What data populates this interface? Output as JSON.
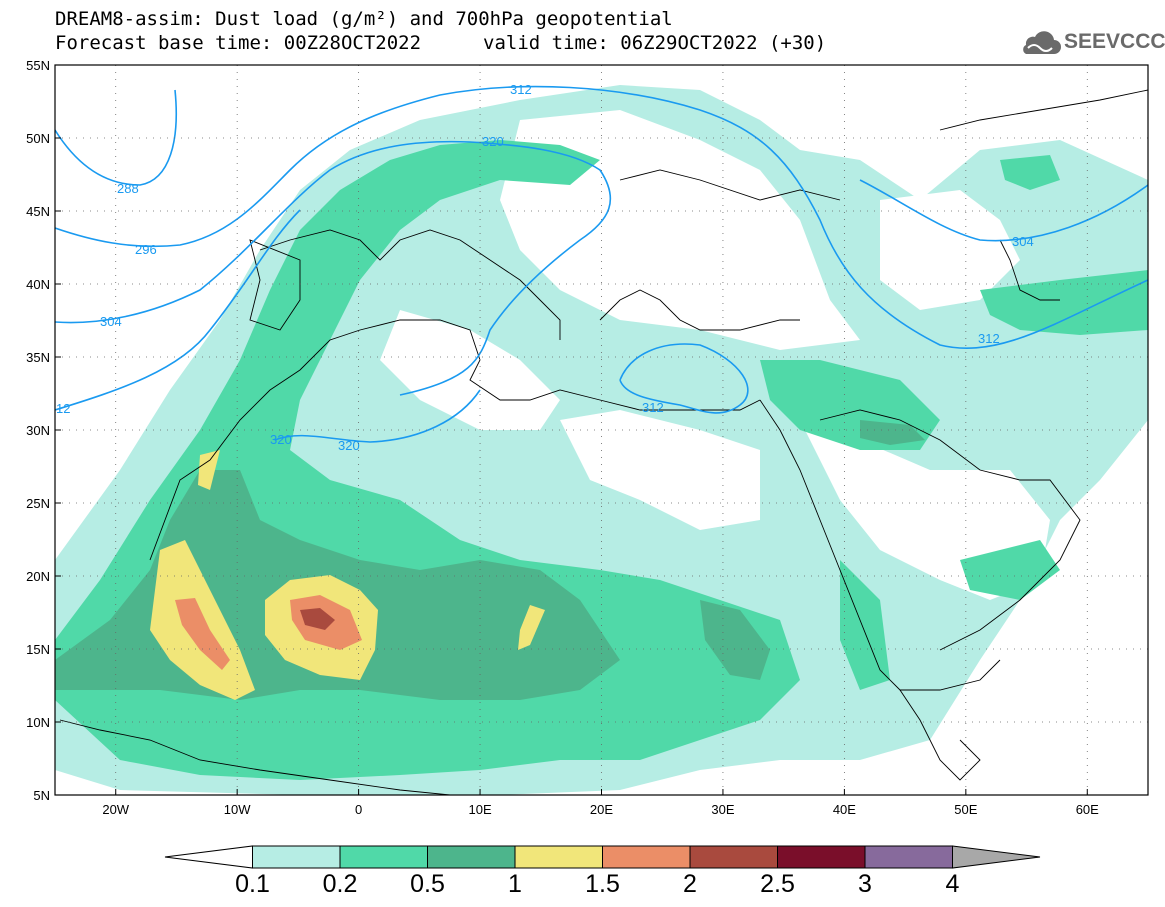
{
  "title": {
    "line1": "DREAM8-assim: Dust load (g/m²) and 700hPa geopotential",
    "line2_left": "Forecast base time: 00Z28OCT2022",
    "line2_right": "valid time: 06Z29OCT2022 (+30)"
  },
  "logo": {
    "text": "SEEVCCC",
    "icon": "cloud-icon",
    "color": "#6a6a6a"
  },
  "map": {
    "lon_range": [
      -25,
      65
    ],
    "lat_range": [
      5,
      55
    ],
    "lat_ticks": [
      "55N",
      "50N",
      "45N",
      "40N",
      "35N",
      "30N",
      "25N",
      "20N",
      "15N",
      "10N",
      "5N"
    ],
    "lon_ticks": [
      "20W",
      "10W",
      "0",
      "10E",
      "20E",
      "30E",
      "40E",
      "50E",
      "60E"
    ],
    "contour_color": "#1a9af0",
    "contour_labels": [
      "312",
      "320",
      "288",
      "296",
      "304",
      "12",
      "320",
      "320",
      "312",
      "304",
      "312"
    ]
  },
  "colorbar": {
    "colors": [
      "#ffffff",
      "#b6ede4",
      "#50d9a8",
      "#4db58c",
      "#f1e67a",
      "#eb8e67",
      "#a94a3e",
      "#7a0e2a",
      "#876a9c",
      "#a8a8a8"
    ],
    "labels": [
      "0.1",
      "0.2",
      "0.5",
      "1",
      "1.5",
      "2",
      "2.5",
      "3",
      "4"
    ]
  }
}
